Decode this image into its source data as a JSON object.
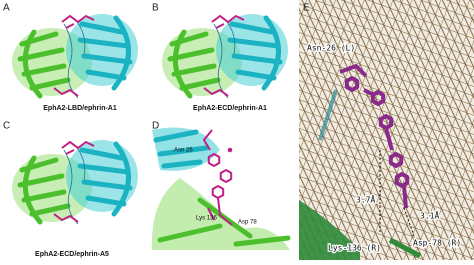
{
  "panels": [
    {
      "label": "A",
      "caption": "EphA2-LBD/ephrin-A1"
    },
    {
      "label": "B",
      "caption": "EphA2-ECD/ephrin-A1"
    },
    {
      "label": "C",
      "caption": "EphA2-ECD/ephrin-A5"
    },
    {
      "label": "D",
      "annotations": [
        "Asn 26",
        "Lys 136",
        "Asp 78"
      ]
    },
    {
      "label": "E",
      "annotations": [
        "Asn-26 (L)",
        "Lys-136 (R)",
        "Asp-78 (R)",
        "3.7Å",
        "3.1Å"
      ]
    }
  ]
}
